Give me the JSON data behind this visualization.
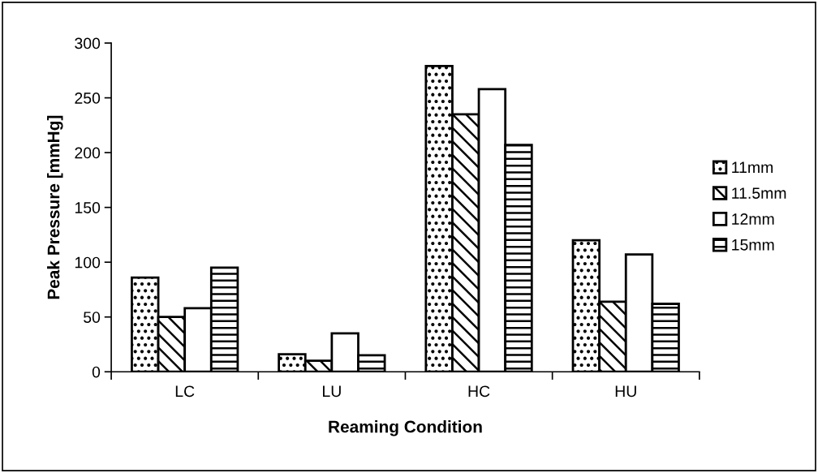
{
  "chart_data": {
    "type": "bar",
    "xlabel": "Reaming Condition",
    "ylabel": "Peak Pressure [mmHg]",
    "categories": [
      "LC",
      "LU",
      "HC",
      "HU"
    ],
    "series": [
      {
        "name": "11mm",
        "color": "#000000",
        "values": [
          86,
          16,
          279,
          120
        ]
      },
      {
        "name": "11.5mm",
        "color": "#000000",
        "values": [
          50,
          10,
          235,
          64
        ]
      },
      {
        "name": "12mm",
        "color": "#ffffff",
        "values": [
          58,
          35,
          258,
          107
        ]
      },
      {
        "name": "15mm",
        "color": "#000000",
        "values": [
          95,
          15,
          207,
          62
        ]
      }
    ],
    "ylim": [
      0,
      300
    ],
    "yticks": [
      0,
      50,
      100,
      150,
      200,
      250,
      300
    ],
    "grid": false,
    "legend": "right"
  }
}
